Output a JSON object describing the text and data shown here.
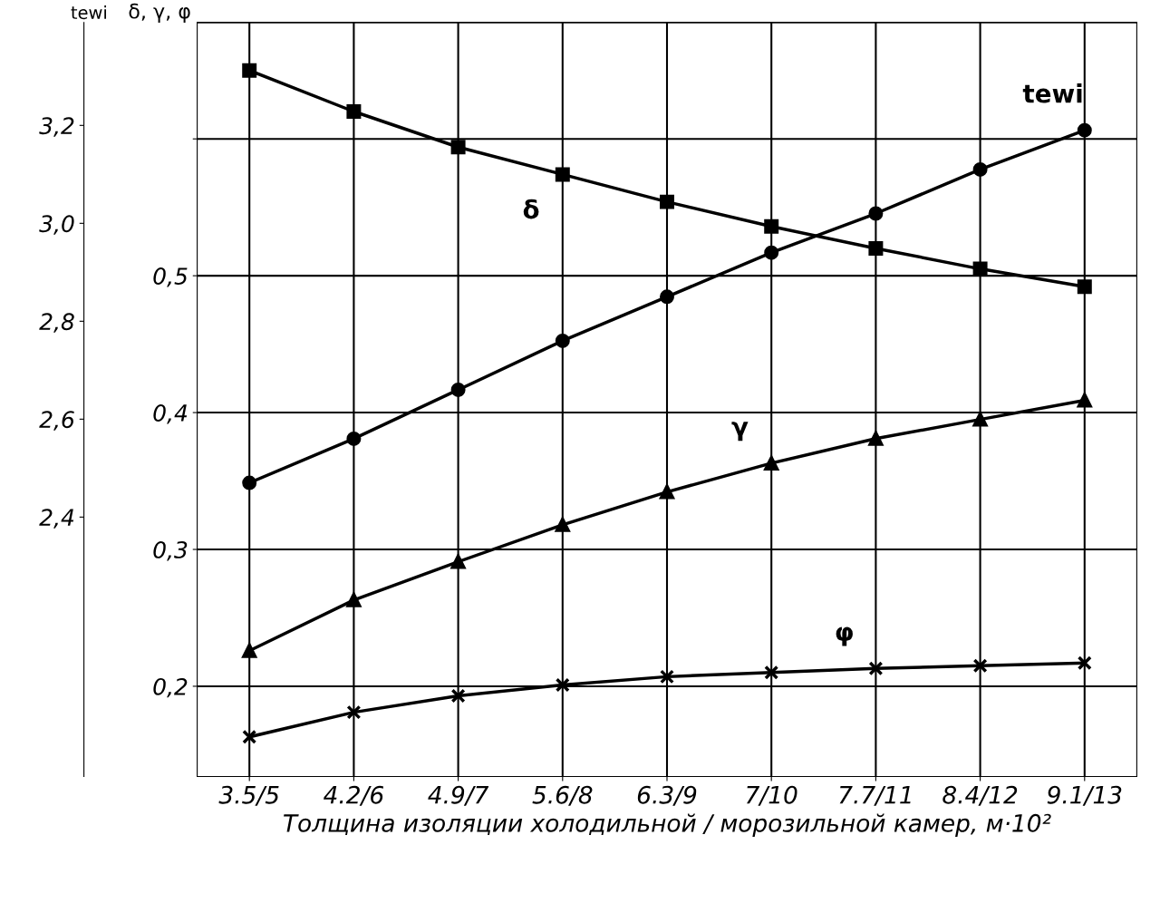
{
  "chart_data": {
    "type": "line",
    "xlabel": "Толщина изоляции холодильной / морозильной камер, м·10²",
    "ylabel": "δ, γ, φ",
    "y2label": "tewi",
    "categories": [
      "3.5/5",
      "4.2/6",
      "4.9/7",
      "5.6/8",
      "6.3/9",
      "7/10",
      "7.7/11",
      "8.4/12",
      "9.1/13"
    ],
    "series": [
      {
        "name": "δ",
        "color": "#000000",
        "marker": "square",
        "values": [
          0.65,
          0.62,
          0.594,
          0.574,
          0.554,
          0.536,
          0.52,
          0.505,
          0.492
        ]
      },
      {
        "name": "tewi",
        "color": "#000000",
        "marker": "circle",
        "axis": "y2",
        "values": [
          2.47,
          2.56,
          2.66,
          2.76,
          2.85,
          2.94,
          3.02,
          3.11,
          3.19
        ]
      },
      {
        "name": "γ",
        "color": "#000000",
        "marker": "triangle",
        "values": [
          0.226,
          0.263,
          0.291,
          0.318,
          0.342,
          0.363,
          0.381,
          0.395,
          0.409
        ]
      },
      {
        "name": "φ",
        "color": "#000000",
        "marker": "cross",
        "values": [
          0.163,
          0.181,
          0.193,
          0.201,
          0.207,
          0.21,
          0.213,
          0.215,
          0.217
        ]
      }
    ],
    "ylim": [
      0.134,
      0.685
    ],
    "yticks": [
      {
        "value": 0.2,
        "label": "0,2"
      },
      {
        "value": 0.3,
        "label": "0,3"
      },
      {
        "value": 0.4,
        "label": "0,4"
      },
      {
        "value": 0.5,
        "label": "0,5"
      },
      {
        "value": 0.6,
        "label": null
      }
    ],
    "y2lim": [
      1.87,
      3.41
    ],
    "y2ticks": [
      {
        "value": 2.4,
        "label": "2,4"
      },
      {
        "value": 2.6,
        "label": "2,6"
      },
      {
        "value": 2.8,
        "label": "2,8"
      },
      {
        "value": 3.0,
        "label": "3,0"
      },
      {
        "value": 3.2,
        "label": "3,2"
      }
    ],
    "grid": true,
    "line_style": "solid"
  }
}
